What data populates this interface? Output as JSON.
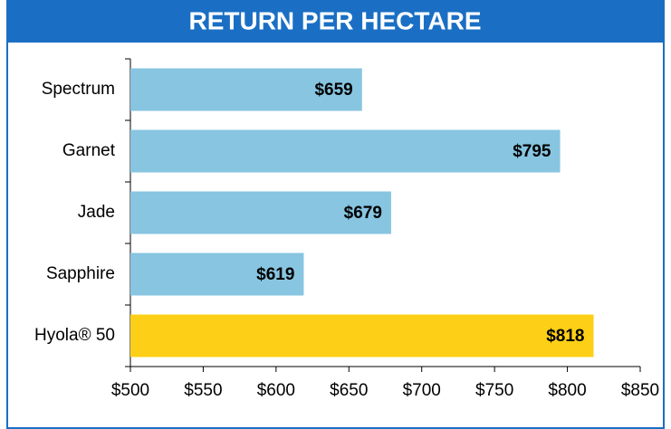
{
  "chart_data": {
    "type": "hbar",
    "title": "RETURN PER HECTARE",
    "categories": [
      "Spectrum",
      "Garnet",
      "Jade",
      "Sapphire",
      "Hyola® 50"
    ],
    "values": [
      659,
      795,
      679,
      619,
      818
    ],
    "value_labels": [
      "$659",
      "$795",
      "$679",
      "$619",
      "$818"
    ],
    "colors": [
      "#87c5e1",
      "#87c5e1",
      "#87c5e1",
      "#87c5e1",
      "#fdd017"
    ],
    "xlim": [
      500,
      850
    ],
    "xticks": [
      {
        "value": 500,
        "label": "$500"
      },
      {
        "value": 550,
        "label": "$550"
      },
      {
        "value": 600,
        "label": "$600"
      },
      {
        "value": 650,
        "label": "$650"
      },
      {
        "value": 700,
        "label": "$700"
      },
      {
        "value": 750,
        "label": "$750"
      },
      {
        "value": 800,
        "label": "$800"
      },
      {
        "value": 850,
        "label": "$850"
      }
    ],
    "grid": false
  }
}
